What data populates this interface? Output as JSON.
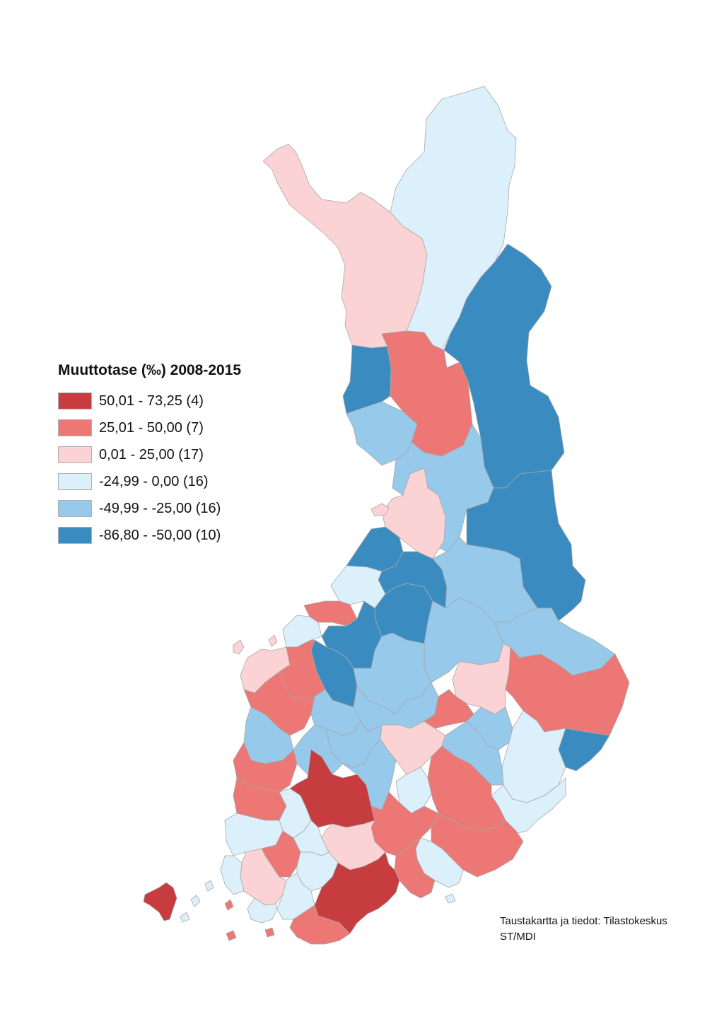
{
  "legend": {
    "title": "Muuttotase (‰) 2008-2015",
    "classes": [
      {
        "label": "50,01 - 73,25 (4)",
        "color": "#c63c3f"
      },
      {
        "label": "25,01 - 50,00 (7)",
        "color": "#ec7775"
      },
      {
        "label": "0,01 - 25,00 (17)",
        "color": "#fbd3d4"
      },
      {
        "label": "-24,99 - 0,00 (16)",
        "color": "#dbf0fb"
      },
      {
        "label": "-49,99 - -25,00 (16)",
        "color": "#96c9ea"
      },
      {
        "label": "-86,80 - -50,00 (10)",
        "color": "#3a8cc0"
      }
    ]
  },
  "source": {
    "line1": "Taustakartta ja tiedot: Tilastokeskus",
    "line2": "ST/MDI"
  }
}
